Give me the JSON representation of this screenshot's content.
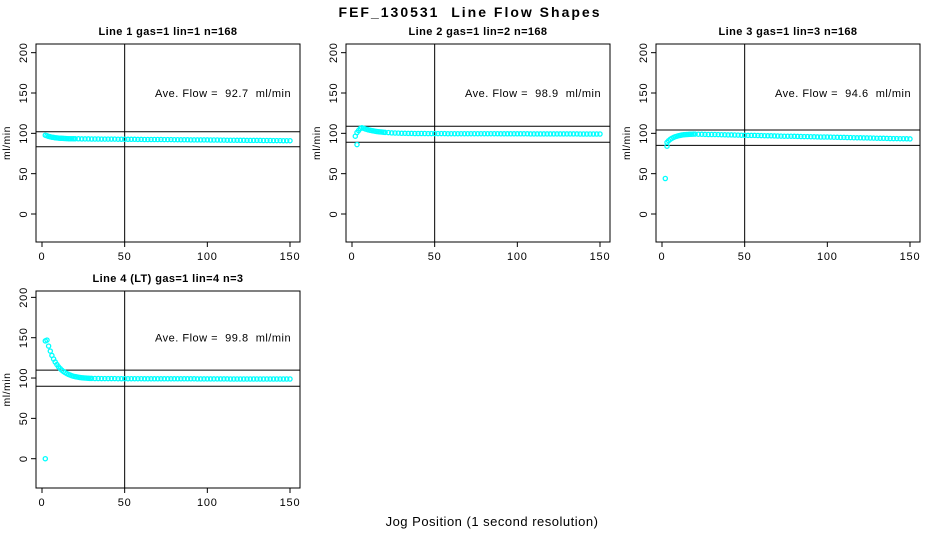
{
  "figure": {
    "title": "FEF_130531  Line Flow Shapes",
    "xlabel": "Jog Position (1 second resolution)",
    "point_color": "#00ffff",
    "axis_color": "#000000",
    "background": "#ffffff"
  },
  "chart_data": [
    {
      "type": "scatter",
      "title": "Line 1 gas=1 lin=1 n=168",
      "ylabel": "ml/min",
      "annotation": "Ave. Flow =  92.7  ml/min",
      "ave_flow_ml_min": 92.7,
      "xlim": [
        0,
        150
      ],
      "ylim": [
        0,
        200
      ],
      "xticks": [
        0,
        50,
        100,
        150
      ],
      "yticks": [
        0,
        50,
        100,
        150,
        200
      ],
      "ref_vline_x": 50,
      "ref_hlines": [
        102.0,
        83.4
      ],
      "outliers": [],
      "points": [
        [
          2,
          97.7
        ],
        [
          3,
          96.9
        ],
        [
          4,
          96.2
        ],
        [
          5,
          95.7
        ],
        [
          6,
          95.2
        ],
        [
          7,
          94.9
        ],
        [
          8,
          94.5
        ],
        [
          9,
          94.3
        ],
        [
          10,
          94.1
        ],
        [
          11,
          93.9
        ],
        [
          12,
          93.8
        ],
        [
          13,
          93.7
        ],
        [
          14,
          93.6
        ],
        [
          15,
          93.5
        ],
        [
          16,
          93.4
        ],
        [
          17,
          93.4
        ],
        [
          18,
          93.3
        ],
        [
          19,
          93.3
        ],
        [
          20,
          93.2
        ],
        [
          22,
          93.2
        ],
        [
          24,
          93.1
        ],
        [
          26,
          93.1
        ],
        [
          28,
          93.1
        ],
        [
          30,
          93.0
        ],
        [
          32,
          93.0
        ],
        [
          34,
          93.0
        ],
        [
          36,
          92.9
        ],
        [
          38,
          92.9
        ],
        [
          40,
          92.8
        ],
        [
          42,
          92.8
        ],
        [
          44,
          92.8
        ],
        [
          46,
          92.7
        ],
        [
          48,
          92.7
        ],
        [
          50,
          92.7
        ],
        [
          52,
          92.6
        ],
        [
          54,
          92.6
        ],
        [
          56,
          92.6
        ],
        [
          58,
          92.5
        ],
        [
          60,
          92.5
        ],
        [
          62,
          92.4
        ],
        [
          64,
          92.4
        ],
        [
          66,
          92.4
        ],
        [
          68,
          92.3
        ],
        [
          70,
          92.3
        ],
        [
          72,
          92.3
        ],
        [
          74,
          92.2
        ],
        [
          76,
          92.2
        ],
        [
          78,
          92.2
        ],
        [
          80,
          92.1
        ],
        [
          82,
          92.1
        ],
        [
          84,
          92.0
        ],
        [
          86,
          92.0
        ],
        [
          88,
          92.0
        ],
        [
          90,
          91.9
        ],
        [
          92,
          91.9
        ],
        [
          94,
          91.9
        ],
        [
          96,
          91.8
        ],
        [
          98,
          91.8
        ],
        [
          100,
          91.8
        ],
        [
          102,
          91.7
        ],
        [
          104,
          91.7
        ],
        [
          106,
          91.7
        ],
        [
          108,
          91.6
        ],
        [
          110,
          91.6
        ],
        [
          112,
          91.5
        ],
        [
          114,
          91.5
        ],
        [
          116,
          91.5
        ],
        [
          118,
          91.4
        ],
        [
          120,
          91.4
        ],
        [
          122,
          91.4
        ],
        [
          124,
          91.3
        ],
        [
          126,
          91.3
        ],
        [
          128,
          91.3
        ],
        [
          130,
          91.2
        ],
        [
          132,
          91.2
        ],
        [
          134,
          91.1
        ],
        [
          136,
          91.1
        ],
        [
          138,
          91.1
        ],
        [
          140,
          91.0
        ],
        [
          142,
          91.0
        ],
        [
          144,
          91.0
        ],
        [
          146,
          90.9
        ],
        [
          148,
          90.9
        ],
        [
          150,
          90.9
        ]
      ]
    },
    {
      "type": "scatter",
      "title": "Line 2 gas=1 lin=2 n=168",
      "ylabel": "ml/min",
      "annotation": "Ave. Flow =  98.9  ml/min",
      "ave_flow_ml_min": 98.9,
      "xlim": [
        0,
        150
      ],
      "ylim": [
        0,
        200
      ],
      "xticks": [
        0,
        50,
        100,
        150
      ],
      "yticks": [
        0,
        50,
        100,
        150,
        200
      ],
      "ref_vline_x": 50,
      "ref_hlines": [
        108.8,
        89.0
      ],
      "outliers": [
        [
          3,
          86
        ]
      ],
      "points": [
        [
          2,
          96.5
        ],
        [
          3,
          101.0
        ],
        [
          4,
          103.5
        ],
        [
          5,
          106.0
        ],
        [
          6,
          107.0
        ],
        [
          7,
          106.2
        ],
        [
          8,
          105.5
        ],
        [
          9,
          104.9
        ],
        [
          10,
          104.3
        ],
        [
          11,
          103.8
        ],
        [
          12,
          103.4
        ],
        [
          13,
          103.0
        ],
        [
          14,
          102.6
        ],
        [
          15,
          102.3
        ],
        [
          16,
          102.0
        ],
        [
          17,
          101.8
        ],
        [
          18,
          101.6
        ],
        [
          19,
          101.4
        ],
        [
          20,
          101.2
        ],
        [
          22,
          100.9
        ],
        [
          24,
          100.6
        ],
        [
          26,
          100.4
        ],
        [
          28,
          100.3
        ],
        [
          30,
          100.1
        ],
        [
          32,
          100.0
        ],
        [
          34,
          99.9
        ],
        [
          36,
          99.9
        ],
        [
          38,
          99.8
        ],
        [
          40,
          99.8
        ],
        [
          42,
          99.8
        ],
        [
          44,
          99.8
        ],
        [
          46,
          99.7
        ],
        [
          48,
          99.7
        ],
        [
          50,
          99.7
        ],
        [
          52,
          99.7
        ],
        [
          54,
          99.7
        ],
        [
          56,
          99.7
        ],
        [
          58,
          99.6
        ],
        [
          60,
          99.6
        ],
        [
          62,
          99.6
        ],
        [
          64,
          99.6
        ],
        [
          66,
          99.6
        ],
        [
          68,
          99.6
        ],
        [
          70,
          99.6
        ],
        [
          72,
          99.6
        ],
        [
          74,
          99.5
        ],
        [
          76,
          99.5
        ],
        [
          78,
          99.5
        ],
        [
          80,
          99.5
        ],
        [
          82,
          99.5
        ],
        [
          84,
          99.5
        ],
        [
          86,
          99.5
        ],
        [
          88,
          99.5
        ],
        [
          90,
          99.4
        ],
        [
          92,
          99.4
        ],
        [
          94,
          99.4
        ],
        [
          96,
          99.4
        ],
        [
          98,
          99.4
        ],
        [
          100,
          99.4
        ],
        [
          102,
          99.4
        ],
        [
          104,
          99.4
        ],
        [
          106,
          99.4
        ],
        [
          108,
          99.3
        ],
        [
          110,
          99.3
        ],
        [
          112,
          99.3
        ],
        [
          114,
          99.3
        ],
        [
          116,
          99.3
        ],
        [
          118,
          99.3
        ],
        [
          120,
          99.3
        ],
        [
          122,
          99.3
        ],
        [
          124,
          99.3
        ],
        [
          126,
          99.3
        ],
        [
          128,
          99.3
        ],
        [
          130,
          99.3
        ],
        [
          132,
          99.3
        ],
        [
          134,
          99.3
        ],
        [
          136,
          99.3
        ],
        [
          138,
          99.2
        ],
        [
          140,
          99.2
        ],
        [
          142,
          99.2
        ],
        [
          144,
          99.2
        ],
        [
          146,
          99.2
        ],
        [
          148,
          99.2
        ],
        [
          150,
          99.2
        ]
      ]
    },
    {
      "type": "scatter",
      "title": "Line 3 gas=1 lin=3 n=168",
      "ylabel": "ml/min",
      "annotation": "Ave. Flow =  94.6  ml/min",
      "ave_flow_ml_min": 94.6,
      "xlim": [
        0,
        150
      ],
      "ylim": [
        0,
        200
      ],
      "xticks": [
        0,
        50,
        100,
        150
      ],
      "yticks": [
        0,
        50,
        100,
        150,
        200
      ],
      "ref_vline_x": 50,
      "ref_hlines": [
        104.1,
        85.1
      ],
      "outliers": [
        [
          2,
          44
        ],
        [
          3,
          84
        ]
      ],
      "points": [
        [
          3,
          88.8
        ],
        [
          4,
          90.9
        ],
        [
          5,
          92.6
        ],
        [
          6,
          93.9
        ],
        [
          7,
          95.0
        ],
        [
          8,
          95.8
        ],
        [
          9,
          96.5
        ],
        [
          10,
          97.1
        ],
        [
          11,
          97.5
        ],
        [
          12,
          97.9
        ],
        [
          13,
          98.2
        ],
        [
          14,
          98.4
        ],
        [
          15,
          98.6
        ],
        [
          16,
          98.7
        ],
        [
          17,
          98.8
        ],
        [
          18,
          98.9
        ],
        [
          19,
          99.0
        ],
        [
          20,
          99.0
        ],
        [
          22,
          98.9
        ],
        [
          24,
          98.8
        ],
        [
          26,
          98.7
        ],
        [
          28,
          98.6
        ],
        [
          30,
          98.5
        ],
        [
          32,
          98.5
        ],
        [
          34,
          98.4
        ],
        [
          36,
          98.3
        ],
        [
          38,
          98.2
        ],
        [
          40,
          98.1
        ],
        [
          42,
          98.0
        ],
        [
          44,
          97.9
        ],
        [
          46,
          97.8
        ],
        [
          48,
          97.7
        ],
        [
          50,
          97.6
        ],
        [
          52,
          97.5
        ],
        [
          54,
          97.5
        ],
        [
          56,
          97.4
        ],
        [
          58,
          97.3
        ],
        [
          60,
          97.2
        ],
        [
          62,
          97.1
        ],
        [
          64,
          97.0
        ],
        [
          66,
          96.9
        ],
        [
          68,
          96.8
        ],
        [
          70,
          96.7
        ],
        [
          72,
          96.6
        ],
        [
          74,
          96.5
        ],
        [
          76,
          96.5
        ],
        [
          78,
          96.4
        ],
        [
          80,
          96.3
        ],
        [
          82,
          96.2
        ],
        [
          84,
          96.1
        ],
        [
          86,
          96.0
        ],
        [
          88,
          95.9
        ],
        [
          90,
          95.8
        ],
        [
          92,
          95.7
        ],
        [
          94,
          95.6
        ],
        [
          96,
          95.5
        ],
        [
          98,
          95.5
        ],
        [
          100,
          95.4
        ],
        [
          102,
          95.3
        ],
        [
          104,
          95.2
        ],
        [
          106,
          95.1
        ],
        [
          108,
          95.0
        ],
        [
          110,
          94.9
        ],
        [
          112,
          94.8
        ],
        [
          114,
          94.7
        ],
        [
          116,
          94.6
        ],
        [
          118,
          94.5
        ],
        [
          120,
          94.5
        ],
        [
          122,
          94.4
        ],
        [
          124,
          94.3
        ],
        [
          126,
          94.2
        ],
        [
          128,
          94.1
        ],
        [
          130,
          94.0
        ],
        [
          132,
          93.9
        ],
        [
          134,
          93.8
        ],
        [
          136,
          93.7
        ],
        [
          138,
          93.6
        ],
        [
          140,
          93.5
        ],
        [
          142,
          93.5
        ],
        [
          144,
          93.4
        ],
        [
          146,
          93.3
        ],
        [
          148,
          93.2
        ],
        [
          150,
          93.1
        ]
      ]
    },
    {
      "type": "scatter",
      "title": "Line 4 (LT) gas=1 lin=4 n=3",
      "ylabel": "ml/min",
      "annotation": "Ave. Flow =  99.8  ml/min",
      "ave_flow_ml_min": 99.8,
      "xlim": [
        0,
        150
      ],
      "ylim": [
        0,
        200
      ],
      "xticks": [
        0,
        50,
        100,
        150
      ],
      "yticks": [
        0,
        50,
        100,
        150,
        200
      ],
      "ref_vline_x": 50,
      "ref_hlines": [
        109.8,
        89.8
      ],
      "outliers": [
        [
          2,
          0
        ]
      ],
      "points": [
        [
          2,
          146
        ],
        [
          3,
          147
        ],
        [
          4,
          139.6
        ],
        [
          5,
          133.4
        ],
        [
          6,
          128.1
        ],
        [
          7,
          123.6
        ],
        [
          8,
          119.9
        ],
        [
          9,
          116.7
        ],
        [
          10,
          113.9
        ],
        [
          11,
          111.7
        ],
        [
          12,
          109.7
        ],
        [
          13,
          108.1
        ],
        [
          14,
          106.7
        ],
        [
          15,
          105.5
        ],
        [
          16,
          104.5
        ],
        [
          17,
          103.7
        ],
        [
          18,
          102.9
        ],
        [
          19,
          102.3
        ],
        [
          20,
          101.8
        ],
        [
          21,
          101.4
        ],
        [
          22,
          101.0
        ],
        [
          23,
          100.7
        ],
        [
          24,
          100.4
        ],
        [
          25,
          100.2
        ],
        [
          26,
          100.0
        ],
        [
          27,
          99.9
        ],
        [
          28,
          99.7
        ],
        [
          29,
          99.6
        ],
        [
          30,
          99.5
        ],
        [
          32,
          99.4
        ],
        [
          34,
          99.4
        ],
        [
          36,
          99.3
        ],
        [
          38,
          99.3
        ],
        [
          40,
          99.3
        ],
        [
          42,
          99.3
        ],
        [
          44,
          99.3
        ],
        [
          46,
          99.2
        ],
        [
          48,
          99.2
        ],
        [
          50,
          99.2
        ],
        [
          52,
          99.2
        ],
        [
          54,
          99.2
        ],
        [
          56,
          99.2
        ],
        [
          58,
          99.2
        ],
        [
          60,
          99.2
        ],
        [
          62,
          99.1
        ],
        [
          64,
          99.1
        ],
        [
          66,
          99.1
        ],
        [
          68,
          99.1
        ],
        [
          70,
          99.1
        ],
        [
          72,
          99.1
        ],
        [
          74,
          99.1
        ],
        [
          76,
          99.1
        ],
        [
          78,
          99.0
        ],
        [
          80,
          99.0
        ],
        [
          82,
          99.0
        ],
        [
          84,
          99.0
        ],
        [
          86,
          99.0
        ],
        [
          88,
          99.0
        ],
        [
          90,
          99.0
        ],
        [
          92,
          99.0
        ],
        [
          94,
          98.9
        ],
        [
          96,
          98.9
        ],
        [
          98,
          98.9
        ],
        [
          100,
          98.9
        ],
        [
          102,
          98.9
        ],
        [
          104,
          98.9
        ],
        [
          106,
          98.9
        ],
        [
          108,
          98.9
        ],
        [
          110,
          98.9
        ],
        [
          112,
          98.9
        ],
        [
          114,
          98.8
        ],
        [
          116,
          98.8
        ],
        [
          118,
          98.8
        ],
        [
          120,
          98.8
        ],
        [
          122,
          98.8
        ],
        [
          124,
          98.8
        ],
        [
          126,
          98.8
        ],
        [
          128,
          98.8
        ],
        [
          130,
          98.8
        ],
        [
          132,
          98.8
        ],
        [
          134,
          98.8
        ],
        [
          136,
          98.8
        ],
        [
          138,
          98.8
        ],
        [
          140,
          98.8
        ],
        [
          142,
          98.8
        ],
        [
          144,
          98.8
        ],
        [
          146,
          98.8
        ],
        [
          148,
          98.8
        ],
        [
          150,
          98.8
        ]
      ]
    }
  ]
}
